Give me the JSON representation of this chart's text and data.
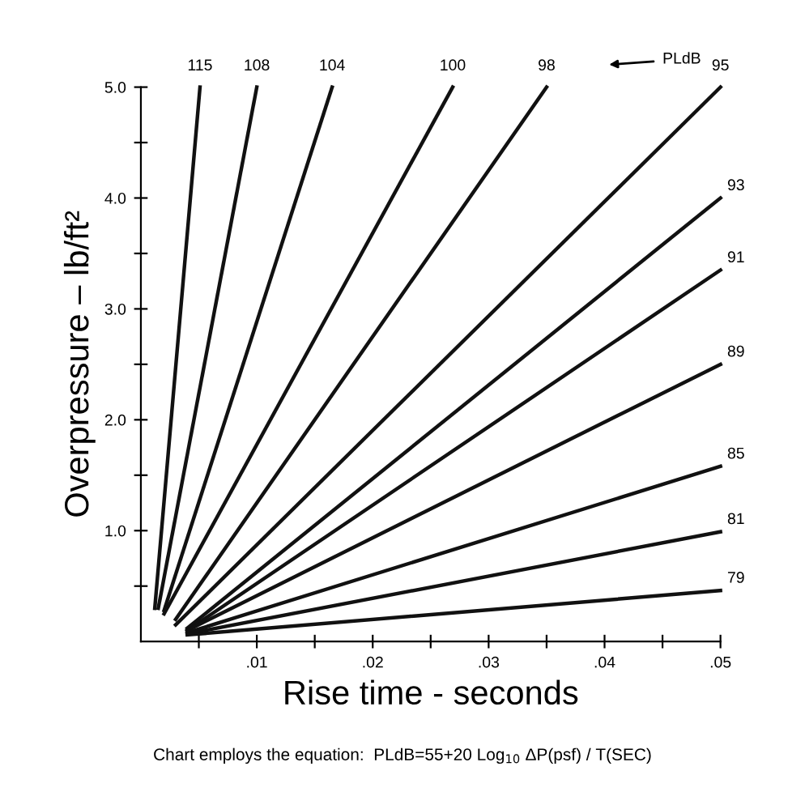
{
  "chart_data": {
    "type": "line",
    "xlabel": "Rise time - seconds",
    "ylabel": "Overpressure – lb/ft²",
    "xlim": [
      0,
      0.05
    ],
    "ylim": [
      0,
      5.0
    ],
    "xticks": [
      {
        "value": 0.005,
        "label": null
      },
      {
        "value": 0.01,
        "label": ".01"
      },
      {
        "value": 0.015,
        "label": null
      },
      {
        "value": 0.02,
        "label": ".02"
      },
      {
        "value": 0.025,
        "label": null
      },
      {
        "value": 0.03,
        "label": ".03"
      },
      {
        "value": 0.035,
        "label": null
      },
      {
        "value": 0.04,
        "label": ".04"
      },
      {
        "value": 0.045,
        "label": null
      },
      {
        "value": 0.05,
        "label": ".05"
      }
    ],
    "yticks": [
      {
        "value": 0.5,
        "label": null
      },
      {
        "value": 1.0,
        "label": "1.0"
      },
      {
        "value": 1.5,
        "label": null
      },
      {
        "value": 2.0,
        "label": "2.0"
      },
      {
        "value": 2.5,
        "label": null
      },
      {
        "value": 3.0,
        "label": "3.0"
      },
      {
        "value": 3.5,
        "label": null
      },
      {
        "value": 4.0,
        "label": "4.0"
      },
      {
        "value": 4.5,
        "label": null
      },
      {
        "value": 5.0,
        "label": "5.0"
      }
    ],
    "grid": false,
    "legend": false,
    "marker": "none",
    "line_style": "solid",
    "series": [
      {
        "name": "115",
        "color": "#111111",
        "x": [
          0.0012,
          0.0051
        ],
        "values": [
          0.3,
          5.0
        ]
      },
      {
        "name": "108",
        "color": "#111111",
        "x": [
          0.0015,
          0.01
        ],
        "values": [
          0.3,
          5.0
        ]
      },
      {
        "name": "104",
        "color": "#111111",
        "x": [
          0.002,
          0.0165
        ],
        "values": [
          0.28,
          5.0
        ]
      },
      {
        "name": "100",
        "color": "#111111",
        "x": [
          0.002,
          0.0269
        ],
        "values": [
          0.25,
          5.0
        ]
      },
      {
        "name": "98",
        "color": "#111111",
        "x": [
          0.003,
          0.035
        ],
        "values": [
          0.2,
          5.0
        ]
      },
      {
        "name": "95",
        "color": "#111111",
        "x": [
          0.003,
          0.05
        ],
        "values": [
          0.15,
          5.0
        ]
      },
      {
        "name": "93",
        "color": "#111111",
        "x": [
          0.004,
          0.05
        ],
        "values": [
          0.12,
          4.0
        ]
      },
      {
        "name": "91",
        "color": "#111111",
        "x": [
          0.004,
          0.05
        ],
        "values": [
          0.1,
          3.35
        ]
      },
      {
        "name": "89",
        "color": "#111111",
        "x": [
          0.004,
          0.05
        ],
        "values": [
          0.1,
          2.5
        ]
      },
      {
        "name": "85",
        "color": "#111111",
        "x": [
          0.004,
          0.05
        ],
        "values": [
          0.08,
          1.58
        ]
      },
      {
        "name": "81",
        "color": "#111111",
        "x": [
          0.004,
          0.05
        ],
        "values": [
          0.07,
          0.99
        ]
      },
      {
        "name": "79",
        "color": "#111111",
        "x": [
          0.004,
          0.05
        ],
        "values": [
          0.06,
          0.46
        ]
      }
    ],
    "annotations": [
      "PLdB",
      "Chart employs the equation:  PLdB=55+20 Log$_{10}$ ΔP(psf) / T(SEC)"
    ]
  }
}
